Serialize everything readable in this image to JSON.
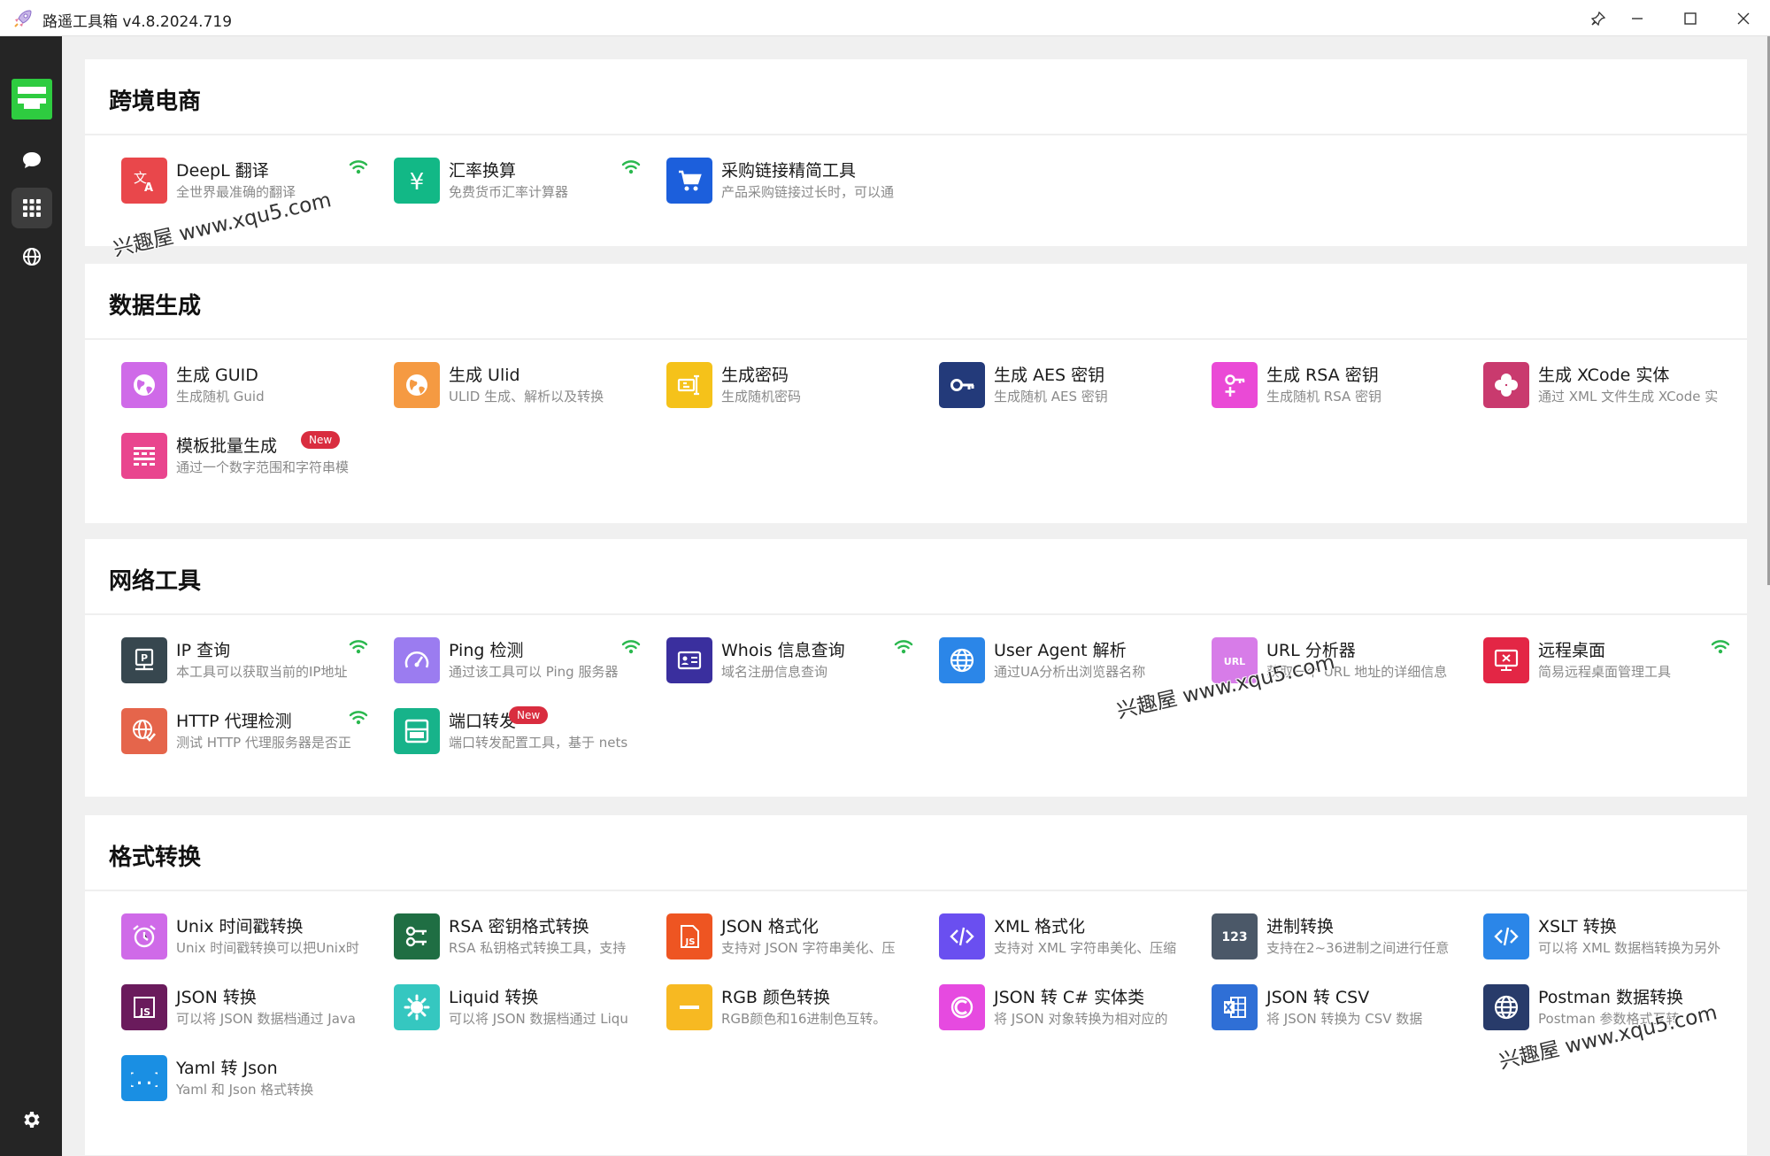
{
  "window": {
    "title": "路遥工具箱 v4.8.2024.719",
    "buttons": {
      "pin": "pin-icon",
      "minimize": "minimize-icon",
      "maximize": "maximize-icon",
      "close": "close-icon"
    }
  },
  "sidebar": {
    "items": [
      {
        "name": "comment-icon",
        "active": false
      },
      {
        "name": "apps-grid-icon",
        "active": true
      },
      {
        "name": "globe-icon",
        "active": false
      }
    ],
    "settings": "gear-icon"
  },
  "watermarks": [
    "兴趣屋 www.xqu5.com",
    "兴趣屋 www.xqu5.com",
    "兴趣屋 www.xqu5.com"
  ],
  "sections": [
    {
      "title": "跨境电商",
      "tools": [
        {
          "name": "DeepL 翻译",
          "desc": "全世界最准确的翻译",
          "icon": "translate-icon",
          "color": "#e9474b",
          "online": true
        },
        {
          "name": "汇率换算",
          "desc": "免费货币汇率计算器",
          "icon": "yen-icon",
          "color": "#12b886",
          "online": true
        },
        {
          "name": "采购链接精简工具",
          "desc": "产品采购链接过长时，可以通",
          "icon": "cart-icon",
          "color": "#1c5fdc",
          "online": false
        }
      ]
    },
    {
      "title": "数据生成",
      "tools": [
        {
          "name": "生成 GUID",
          "desc": "生成随机 Guid",
          "icon": "globe-shape-icon",
          "color": "#cf6ae8",
          "online": false
        },
        {
          "name": "生成 Ulid",
          "desc": "ULID 生成、解析以及转换",
          "icon": "globe-shape-icon",
          "color": "#f59a42",
          "online": false
        },
        {
          "name": "生成密码",
          "desc": "生成随机密码",
          "icon": "password-icon",
          "color": "#f5c21a",
          "online": false
        },
        {
          "name": "生成 AES 密钥",
          "desc": "生成随机 AES 密钥",
          "icon": "key-icon",
          "color": "#233a7a",
          "online": false
        },
        {
          "name": "生成 RSA 密钥",
          "desc": "生成随机 RSA 密钥",
          "icon": "key-plus-icon",
          "color": "#ea4ad6",
          "online": false
        },
        {
          "name": "生成 XCode 实体",
          "desc": "通过 XML 文件生成 XCode 实",
          "icon": "clover-icon",
          "color": "#c93a6e",
          "online": false
        },
        {
          "name": "模板批量生成",
          "desc": "通过一个数字范围和字符串模",
          "icon": "template-icon",
          "color": "#e9458e",
          "online": false,
          "badge": "New"
        }
      ]
    },
    {
      "title": "网络工具",
      "tools": [
        {
          "name": "IP 查询",
          "desc": "本工具可以获取当前的IP地址",
          "icon": "ip-icon",
          "color": "#37474f",
          "online": true
        },
        {
          "name": "Ping 检测",
          "desc": "通过该工具可以 Ping 服务器",
          "icon": "gauge-icon",
          "color": "#9b7cf0",
          "online": true
        },
        {
          "name": "Whois 信息查询",
          "desc": "域名注册信息查询",
          "icon": "id-card-icon",
          "color": "#3a2f9e",
          "online": true
        },
        {
          "name": "User Agent 解析",
          "desc": "通过UA分析出浏览器名称",
          "icon": "globe-line-icon",
          "color": "#2b86e8",
          "online": false
        },
        {
          "name": "URL 分析器",
          "desc": "获取一个 URL 地址的详细信息",
          "icon": "url-icon",
          "color": "#d77ce8",
          "online": false
        },
        {
          "name": "远程桌面",
          "desc": "简易远程桌面管理工具",
          "icon": "remote-desktop-icon",
          "color": "#e32645",
          "online": true
        },
        {
          "name": "HTTP 代理检测",
          "desc": "测试 HTTP 代理服务器是否正",
          "icon": "globe-check-icon",
          "color": "#e5654b",
          "online": true
        },
        {
          "name": "端口转发",
          "desc": "端口转发配置工具，基于 nets",
          "icon": "port-icon",
          "color": "#17b38a",
          "online": false,
          "badge": "New"
        }
      ]
    },
    {
      "title": "格式转换",
      "tools": [
        {
          "name": "Unix 时间戳转换",
          "desc": "Unix 时间戳转换可以把Unix时",
          "icon": "alarm-icon",
          "color": "#cf6ae8",
          "online": false
        },
        {
          "name": "RSA 密钥格式转换",
          "desc": "RSA 私钥格式转换工具，支持",
          "icon": "keys-icon",
          "color": "#1f6e43",
          "online": false
        },
        {
          "name": "JSON 格式化",
          "desc": "支持对 JSON 字符串美化、压",
          "icon": "js-file-icon",
          "color": "#ee5522",
          "online": false
        },
        {
          "name": "XML 格式化",
          "desc": "支持对 XML 字符串美化、压缩",
          "icon": "code-icon",
          "color": "#6a4ff0",
          "online": false
        },
        {
          "name": "进制转换",
          "desc": "支持在2~36进制之间进行任意",
          "icon": "numbers-icon",
          "color": "#4b5868",
          "online": false
        },
        {
          "name": "XSLT 转换",
          "desc": "可以将 XML 数据档转换为另外",
          "icon": "code-icon",
          "color": "#2b86e8",
          "online": false
        },
        {
          "name": "JSON 转换",
          "desc": "可以将 JSON 数据档通过 Java",
          "icon": "js-icon",
          "color": "#6a1b5c",
          "online": false
        },
        {
          "name": "Liquid 转换",
          "desc": "可以将 JSON 数据档通过 Liqu",
          "icon": "splash-icon",
          "color": "#35c7c0",
          "online": false
        },
        {
          "name": "RGB 颜色转换",
          "desc": "RGB颜色和16进制色互转。",
          "icon": "minus-icon",
          "color": "#f7b922",
          "online": false
        },
        {
          "name": "JSON 转 C# 实体类",
          "desc": "将 JSON 对象转换为相对应的",
          "icon": "csharp-icon",
          "color": "#e64ae0",
          "online": false
        },
        {
          "name": "JSON 转 CSV",
          "desc": "将 JSON 转换为 CSV 数据",
          "icon": "excel-icon",
          "color": "#2f6fd6",
          "online": false
        },
        {
          "name": "Postman 数据转换",
          "desc": "Postman 参数格式互转",
          "icon": "globe-line-icon",
          "color": "#283b6a",
          "online": false
        },
        {
          "name": "Yaml 转 Json",
          "desc": "Yaml 和 Json 格式转换",
          "icon": "braces-icon",
          "color": "#1a8fe3",
          "online": false
        }
      ]
    }
  ]
}
